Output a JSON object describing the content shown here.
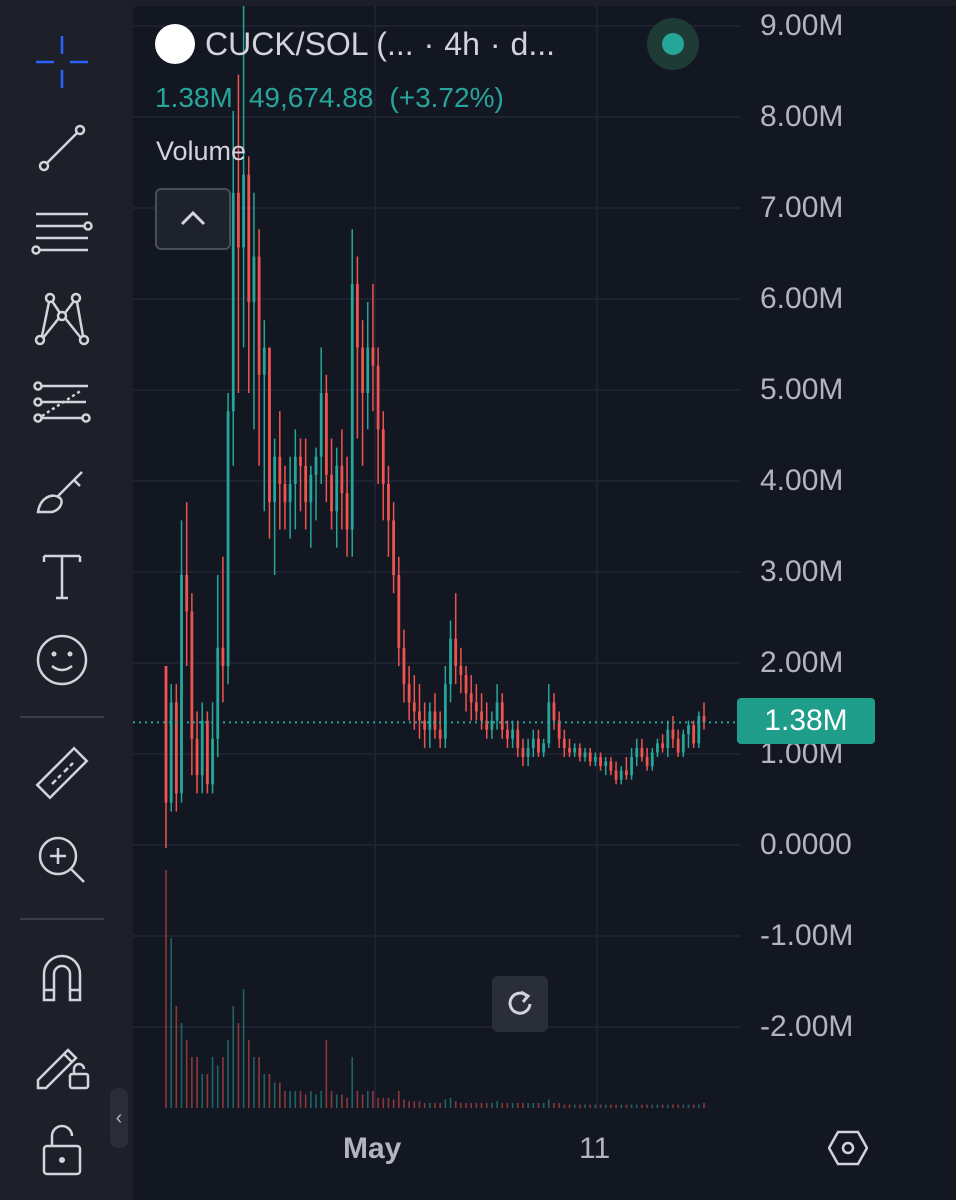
{
  "legend": {
    "symbol": "CUCK/SOL (...",
    "separator": "·",
    "interval": "4h",
    "source": "d..."
  },
  "ohlc": {
    "volume": "1.38M",
    "value": "49,674.88",
    "change": "(+3.72%)"
  },
  "volume_label": "Volume",
  "price_axis": {
    "ticks": [
      "9.00M",
      "8.00M",
      "7.00M",
      "6.00M",
      "5.00M",
      "4.00M",
      "3.00M",
      "2.00M",
      "1.00M",
      "0.0000",
      "-1.00M",
      "-2.00M"
    ],
    "last_price": "1.38M"
  },
  "time_axis": {
    "ticks": [
      "May",
      "11"
    ]
  },
  "tools": [
    {
      "name": "crosshair-icon"
    },
    {
      "name": "trend-line-icon"
    },
    {
      "name": "fib-icon"
    },
    {
      "name": "pattern-icon"
    },
    {
      "name": "prediction-icon"
    },
    {
      "name": "brush-icon"
    },
    {
      "name": "text-icon"
    },
    {
      "name": "emoji-icon"
    },
    {
      "name": "ruler-icon"
    },
    {
      "name": "zoom-in-icon"
    },
    {
      "name": "magnet-icon"
    },
    {
      "name": "lock-drawings-icon"
    },
    {
      "name": "unlock-icon"
    }
  ],
  "colors": {
    "up": "#26a69a",
    "down": "#ef5350",
    "background": "#131722",
    "accent": "#2962ff"
  },
  "chart_data": {
    "type": "candlestick",
    "price_unit": "M",
    "y_range": [
      -2.6,
      9.2
    ],
    "last_price": 1.38,
    "candles": [
      [
        2.0,
        2.0,
        0.0,
        0.5
      ],
      [
        0.5,
        1.8,
        0.4,
        1.6
      ],
      [
        1.6,
        1.8,
        0.4,
        0.6
      ],
      [
        0.6,
        3.6,
        0.5,
        3.0
      ],
      [
        3.0,
        3.8,
        2.0,
        2.6
      ],
      [
        2.6,
        2.8,
        0.8,
        1.2
      ],
      [
        1.2,
        1.5,
        0.6,
        0.8
      ],
      [
        0.8,
        1.6,
        0.6,
        1.4
      ],
      [
        1.4,
        1.5,
        0.6,
        0.7
      ],
      [
        0.7,
        1.6,
        0.6,
        1.2
      ],
      [
        1.2,
        3.0,
        1.0,
        2.2
      ],
      [
        2.2,
        3.2,
        1.6,
        2.0
      ],
      [
        2.0,
        5.0,
        1.8,
        4.8
      ],
      [
        4.8,
        8.1,
        4.2,
        7.2
      ],
      [
        7.2,
        8.5,
        5.0,
        6.6
      ],
      [
        6.6,
        9.5,
        5.5,
        7.4
      ],
      [
        7.4,
        7.6,
        5.0,
        6.0
      ],
      [
        6.0,
        7.2,
        4.6,
        6.5
      ],
      [
        6.5,
        6.8,
        4.2,
        5.2
      ],
      [
        5.2,
        5.8,
        3.7,
        5.5
      ],
      [
        5.5,
        5.5,
        3.4,
        3.8
      ],
      [
        3.8,
        4.5,
        3.0,
        4.3
      ],
      [
        4.3,
        4.8,
        3.5,
        4.0
      ],
      [
        4.0,
        4.2,
        3.5,
        3.8
      ],
      [
        3.8,
        4.3,
        3.4,
        4.0
      ],
      [
        4.0,
        4.6,
        3.5,
        4.3
      ],
      [
        4.3,
        4.5,
        3.7,
        4.2
      ],
      [
        4.2,
        4.5,
        3.5,
        3.8
      ],
      [
        3.8,
        4.2,
        3.3,
        4.1
      ],
      [
        4.1,
        4.4,
        3.6,
        4.3
      ],
      [
        4.3,
        5.5,
        4.0,
        5.0
      ],
      [
        5.0,
        5.2,
        3.8,
        4.1
      ],
      [
        4.1,
        4.5,
        3.5,
        3.7
      ],
      [
        3.7,
        4.4,
        3.3,
        4.2
      ],
      [
        4.2,
        4.6,
        3.5,
        3.9
      ],
      [
        3.9,
        4.3,
        3.2,
        3.5
      ],
      [
        3.5,
        6.8,
        3.2,
        6.2
      ],
      [
        6.2,
        6.5,
        4.5,
        5.5
      ],
      [
        5.5,
        5.8,
        4.2,
        5.0
      ],
      [
        5.0,
        6.0,
        4.6,
        5.5
      ],
      [
        5.5,
        6.2,
        4.8,
        5.3
      ],
      [
        5.3,
        5.5,
        4.0,
        4.6
      ],
      [
        4.6,
        4.8,
        3.6,
        4.0
      ],
      [
        4.0,
        4.2,
        3.2,
        3.6
      ],
      [
        3.6,
        3.8,
        2.8,
        3.0
      ],
      [
        3.0,
        3.2,
        2.0,
        2.2
      ],
      [
        2.2,
        2.4,
        1.6,
        1.8
      ],
      [
        1.8,
        2.0,
        1.4,
        1.6
      ],
      [
        1.6,
        1.9,
        1.3,
        1.5
      ],
      [
        1.5,
        1.8,
        1.2,
        1.4
      ],
      [
        1.4,
        1.6,
        1.1,
        1.3
      ],
      [
        1.3,
        1.6,
        1.1,
        1.5
      ],
      [
        1.5,
        1.7,
        1.2,
        1.3
      ],
      [
        1.3,
        1.5,
        1.1,
        1.2
      ],
      [
        1.2,
        2.0,
        1.1,
        1.8
      ],
      [
        1.8,
        2.5,
        1.6,
        2.3
      ],
      [
        2.3,
        2.8,
        1.8,
        2.0
      ],
      [
        2.0,
        2.2,
        1.7,
        1.9
      ],
      [
        1.9,
        2.0,
        1.5,
        1.7
      ],
      [
        1.7,
        1.9,
        1.4,
        1.6
      ],
      [
        1.6,
        1.8,
        1.4,
        1.5
      ],
      [
        1.5,
        1.7,
        1.3,
        1.4
      ],
      [
        1.4,
        1.6,
        1.2,
        1.3
      ],
      [
        1.3,
        1.5,
        1.2,
        1.4
      ],
      [
        1.4,
        1.8,
        1.3,
        1.6
      ],
      [
        1.6,
        1.7,
        1.2,
        1.3
      ],
      [
        1.3,
        1.4,
        1.1,
        1.2
      ],
      [
        1.2,
        1.4,
        1.1,
        1.3
      ],
      [
        1.3,
        1.4,
        1.0,
        1.1
      ],
      [
        1.1,
        1.2,
        0.9,
        1.0
      ],
      [
        1.0,
        1.2,
        0.9,
        1.1
      ],
      [
        1.1,
        1.3,
        1.0,
        1.2
      ],
      [
        1.2,
        1.3,
        1.0,
        1.05
      ],
      [
        1.05,
        1.2,
        1.0,
        1.15
      ],
      [
        1.15,
        1.8,
        1.1,
        1.6
      ],
      [
        1.6,
        1.7,
        1.3,
        1.4
      ],
      [
        1.4,
        1.5,
        1.1,
        1.2
      ],
      [
        1.2,
        1.3,
        1.0,
        1.1
      ],
      [
        1.1,
        1.2,
        1.0,
        1.05
      ],
      [
        1.05,
        1.15,
        1.0,
        1.1
      ],
      [
        1.1,
        1.15,
        0.95,
        1.0
      ],
      [
        1.0,
        1.1,
        0.95,
        1.05
      ],
      [
        1.05,
        1.1,
        0.9,
        0.95
      ],
      [
        0.95,
        1.05,
        0.9,
        1.0
      ],
      [
        1.0,
        1.05,
        0.85,
        0.9
      ],
      [
        0.9,
        1.0,
        0.8,
        0.95
      ],
      [
        0.95,
        1.0,
        0.8,
        0.85
      ],
      [
        0.85,
        0.95,
        0.7,
        0.75
      ],
      [
        0.75,
        0.9,
        0.7,
        0.85
      ],
      [
        0.85,
        1.0,
        0.75,
        0.8
      ],
      [
        0.8,
        1.1,
        0.75,
        1.0
      ],
      [
        1.0,
        1.2,
        0.9,
        1.1
      ],
      [
        1.1,
        1.2,
        0.95,
        1.0
      ],
      [
        1.0,
        1.1,
        0.85,
        0.9
      ],
      [
        0.9,
        1.1,
        0.85,
        1.05
      ],
      [
        1.05,
        1.2,
        1.0,
        1.15
      ],
      [
        1.15,
        1.25,
        1.05,
        1.1
      ],
      [
        1.1,
        1.4,
        1.0,
        1.3
      ],
      [
        1.3,
        1.45,
        1.1,
        1.2
      ],
      [
        1.2,
        1.3,
        1.0,
        1.05
      ],
      [
        1.05,
        1.3,
        1.0,
        1.25
      ],
      [
        1.25,
        1.4,
        1.1,
        1.35
      ],
      [
        1.35,
        1.4,
        1.1,
        1.15
      ],
      [
        1.15,
        1.5,
        1.1,
        1.45
      ],
      [
        1.45,
        1.6,
        1.3,
        1.38
      ]
    ],
    "volumes": [
      1.4,
      1.0,
      0.6,
      0.5,
      0.4,
      0.3,
      0.3,
      0.2,
      0.2,
      0.3,
      0.25,
      0.3,
      0.4,
      0.6,
      0.5,
      0.7,
      0.4,
      0.3,
      0.3,
      0.2,
      0.2,
      0.15,
      0.15,
      0.1,
      0.1,
      0.1,
      0.1,
      0.08,
      0.1,
      0.08,
      0.1,
      0.4,
      0.1,
      0.08,
      0.08,
      0.06,
      0.3,
      0.1,
      0.08,
      0.1,
      0.1,
      0.06,
      0.06,
      0.06,
      0.05,
      0.1,
      0.05,
      0.04,
      0.04,
      0.04,
      0.03,
      0.03,
      0.03,
      0.03,
      0.05,
      0.06,
      0.04,
      0.03,
      0.03,
      0.03,
      0.03,
      0.03,
      0.03,
      0.03,
      0.04,
      0.03,
      0.03,
      0.03,
      0.03,
      0.03,
      0.03,
      0.03,
      0.03,
      0.03,
      0.05,
      0.03,
      0.03,
      0.02,
      0.02,
      0.02,
      0.02,
      0.02,
      0.02,
      0.02,
      0.02,
      0.02,
      0.02,
      0.02,
      0.02,
      0.02,
      0.02,
      0.02,
      0.02,
      0.02,
      0.02,
      0.02,
      0.02,
      0.02,
      0.02,
      0.02,
      0.02,
      0.02,
      0.02,
      0.02,
      0.03
    ]
  }
}
